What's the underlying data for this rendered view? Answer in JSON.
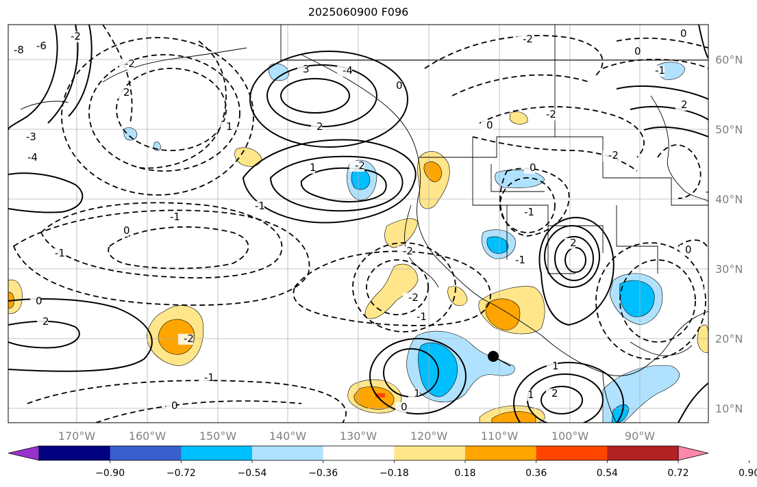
{
  "title": "2025060900 F096",
  "lat_labels": [
    "60°N",
    "50°N",
    "40°N",
    "30°N",
    "20°N",
    "10°N"
  ],
  "lon_labels": [
    "170°W",
    "160°W",
    "150°W",
    "140°W",
    "130°W",
    "120°W",
    "110°W",
    "100°W",
    "90°W"
  ],
  "colorbar": {
    "tick_labels": [
      "−0.90",
      "−0.72",
      "−0.54",
      "−0.36",
      "−0.18",
      "0.18",
      "0.36",
      "0.54",
      "0.72",
      "0.90"
    ],
    "colors": [
      "#9932CC",
      "#000080",
      "#3A5FCD",
      "#00BFFF",
      "#B0E2FF",
      "#FFFFFF",
      "#FFE68A",
      "#FFA500",
      "#FF4500",
      "#B22222",
      "#FF88AA"
    ]
  },
  "contour_labels": [
    "-8",
    "-6",
    "-2",
    "-2",
    "0",
    "0",
    "0",
    "-1",
    "2",
    "2",
    "-1",
    "-3",
    "-4",
    "3",
    "-4",
    "0",
    "-2",
    "-2",
    "0",
    "-2",
    "-1",
    "2",
    "0",
    "1",
    "-2",
    "2",
    "-1",
    "1",
    "0",
    "-1",
    "-2",
    "0",
    "-1",
    "-2",
    "1",
    "1",
    "2",
    "-1",
    "0",
    "1",
    "2",
    "1",
    "-1",
    "0",
    "-1",
    "-2",
    "-1"
  ]
}
